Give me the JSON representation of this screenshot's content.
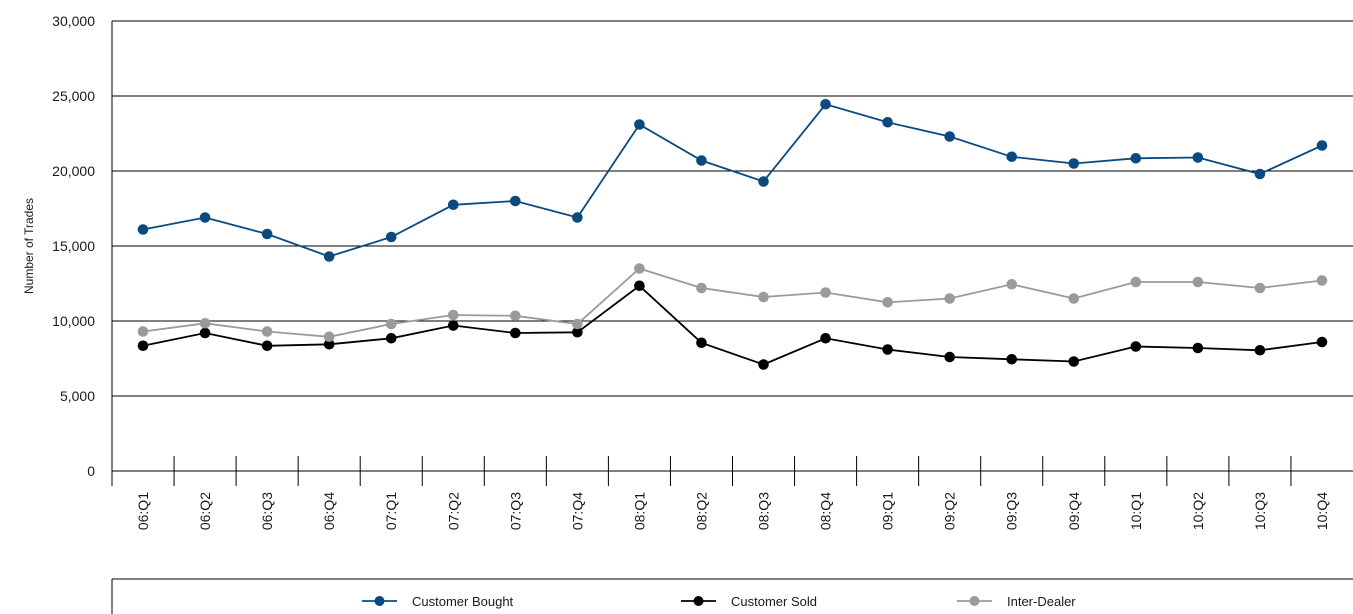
{
  "chart_data": {
    "type": "line",
    "ylabel": "Number of Trades",
    "xlabel": "",
    "ylim": [
      0,
      30000
    ],
    "yticks": [
      0,
      5000,
      10000,
      15000,
      20000,
      25000,
      30000
    ],
    "ytick_labels": [
      "0",
      "5,000",
      "10,000",
      "15,000",
      "20,000",
      "25,000",
      "30,000"
    ],
    "grid": "horizontal",
    "legend_position": "bottom",
    "categories": [
      "06:Q1",
      "06:Q2",
      "06:Q3",
      "06:Q4",
      "07:Q1",
      "07:Q2",
      "07:Q3",
      "07:Q4",
      "08:Q1",
      "08:Q2",
      "08:Q3",
      "08:Q4",
      "09:Q1",
      "09:Q2",
      "09:Q3",
      "09:Q4",
      "10:Q1",
      "10:Q2",
      "10:Q3",
      "10:Q4"
    ],
    "series": [
      {
        "name": "Customer Bought",
        "color": "#0b4a80",
        "values": [
          16100,
          16900,
          15800,
          14300,
          15600,
          17750,
          18000,
          16900,
          23100,
          20700,
          19300,
          24450,
          23250,
          22300,
          20950,
          20500,
          20850,
          20900,
          19800,
          21700
        ]
      },
      {
        "name": "Customer Sold",
        "color": "#000000",
        "values": [
          8350,
          9200,
          8350,
          8450,
          8850,
          9700,
          9200,
          9250,
          12350,
          8550,
          7100,
          8850,
          8100,
          7600,
          7450,
          7300,
          8300,
          8200,
          8050,
          8600
        ]
      },
      {
        "name": "Inter-Dealer",
        "color": "#9a9a9a",
        "values": [
          9300,
          9850,
          9300,
          8950,
          9800,
          10400,
          10350,
          9800,
          13500,
          12200,
          11600,
          11900,
          11250,
          11500,
          12450,
          11500,
          12600,
          12600,
          12200,
          12700
        ]
      }
    ]
  }
}
